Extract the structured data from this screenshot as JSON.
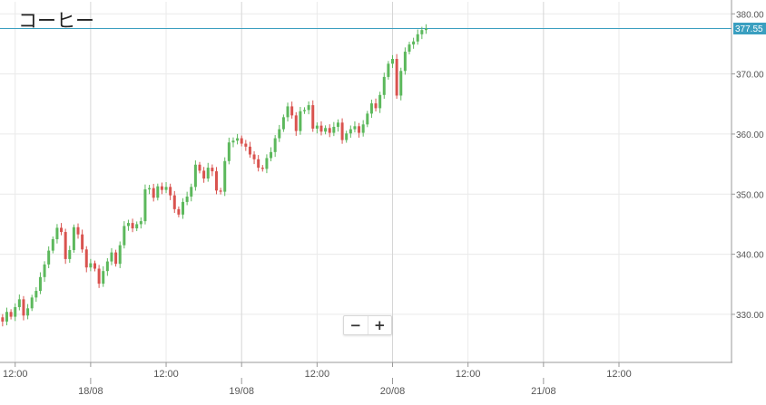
{
  "chart_data": {
    "type": "candlestick",
    "title": "コーヒー",
    "ylim": [
      322,
      382
    ],
    "y_ticks": [
      {
        "value": 380,
        "label": "380.00"
      },
      {
        "value": 370,
        "label": "370.00"
      },
      {
        "value": 360,
        "label": "360.00"
      },
      {
        "value": 350,
        "label": "350.00"
      },
      {
        "value": 340,
        "label": "340.00"
      },
      {
        "value": 330,
        "label": "330.00"
      }
    ],
    "x_ticks": [
      {
        "t": 6,
        "label": "12:00",
        "kind": "time"
      },
      {
        "t": 24,
        "label": "18/08",
        "kind": "day"
      },
      {
        "t": 42,
        "label": "12:00",
        "kind": "time"
      },
      {
        "t": 60,
        "label": "19/08",
        "kind": "day"
      },
      {
        "t": 78,
        "label": "12:00",
        "kind": "time"
      },
      {
        "t": 96,
        "label": "20/08",
        "kind": "day"
      },
      {
        "t": 114,
        "label": "12:00",
        "kind": "time"
      },
      {
        "t": 132,
        "label": "21/08",
        "kind": "day"
      },
      {
        "t": 150,
        "label": "12:00",
        "kind": "time"
      }
    ],
    "last_price": {
      "value": 377.55,
      "label": "377.55"
    },
    "colors": {
      "up": "#5cb85c",
      "down": "#d9534f",
      "price_line": "#3a9fc0",
      "grid": "#eaeaea"
    },
    "grid": true,
    "closes": [
      327.5,
      328.6,
      329.5,
      328.8,
      330.4,
      329.6,
      331.2,
      332.5,
      329.8,
      331.0,
      332.8,
      333.9,
      336.2,
      338.3,
      340.6,
      342.5,
      344.4,
      343.7,
      339.2,
      340.7,
      344.5,
      343.3,
      340.8,
      337.8,
      338.5,
      337.6,
      335.1,
      337.2,
      338.8,
      340.3,
      338.4,
      341.5,
      344.7,
      345.2,
      344.3,
      345.0,
      345.5,
      350.8,
      351.0,
      349.4,
      351.3,
      350.7,
      351.2,
      349.8,
      347.5,
      346.6,
      348.7,
      349.6,
      351.2,
      354.9,
      353.9,
      352.6,
      354.4,
      353.8,
      350.6,
      350.4,
      355.5,
      358.6,
      358.9,
      359.3,
      358.4,
      357.9,
      356.6,
      355.8,
      354.4,
      354.2,
      356.0,
      357.0,
      359.3,
      360.8,
      362.8,
      364.6,
      363.1,
      360.5,
      363.8,
      364.0,
      364.8,
      360.9,
      361.4,
      360.4,
      361.0,
      360.2,
      361.2,
      361.9,
      359.0,
      360.1,
      360.8,
      361.3,
      360.2,
      361.6,
      363.4,
      365.1,
      364.3,
      366.5,
      369.5,
      371.7,
      372.5,
      366.4,
      370.5,
      373.7,
      374.9,
      375.4,
      376.6,
      377.3,
      377.55
    ]
  }
}
